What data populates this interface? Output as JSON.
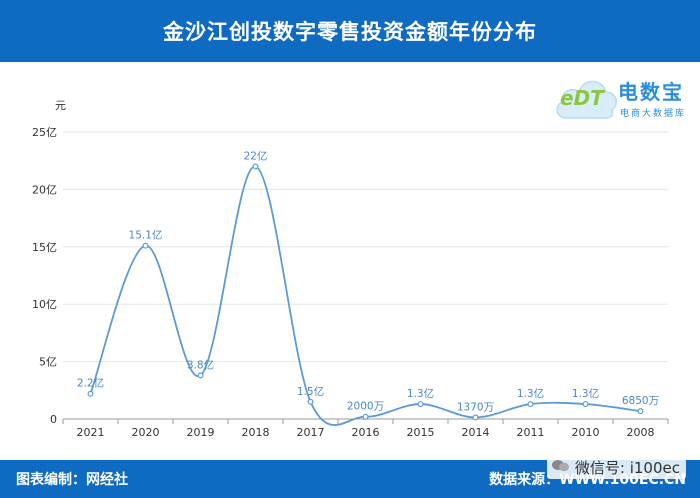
{
  "header": {
    "title": "金沙江创投数字零售投资金额年份分布"
  },
  "footer": {
    "left": "图表编制：网经社",
    "right": "数据来源：WWW.100EC.CN"
  },
  "watermark": {
    "text": "微信号: i100ec"
  },
  "logo": {
    "main": "电数宝",
    "sub": "电商大数据库",
    "letters": "eDT"
  },
  "chart_data": {
    "type": "line",
    "smooth": true,
    "categories": [
      "2021",
      "2020",
      "2019",
      "2018",
      "2017",
      "2016",
      "2015",
      "2014",
      "2011",
      "2010",
      "2008"
    ],
    "values": [
      2.2,
      15.1,
      3.8,
      22,
      1.5,
      0.2,
      1.3,
      0.137,
      1.3,
      1.3,
      0.685
    ],
    "labels": [
      "2.2亿",
      "15.1亿",
      "3.8亿",
      "22亿",
      "1.5亿",
      "2000万",
      "1.3亿",
      "1370万",
      "1.3亿",
      "1.3亿",
      "6850万"
    ],
    "ylabel": "元",
    "yticks": [
      0,
      5,
      10,
      15,
      20,
      25
    ],
    "ytick_labels": [
      "0",
      "5亿",
      "10亿",
      "15亿",
      "20亿",
      "25亿"
    ],
    "ylim": [
      0,
      25
    ],
    "grid": true,
    "colors": {
      "line": "#5b9bd5",
      "point_fill": "#ffffff",
      "label": "#4a86c8",
      "grid": "#e6e6e6"
    }
  }
}
